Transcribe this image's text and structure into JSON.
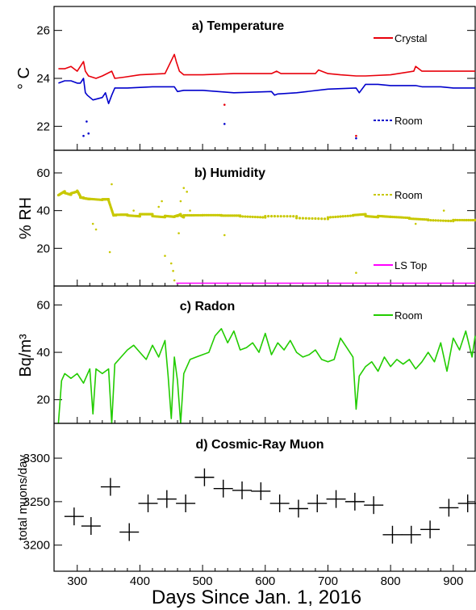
{
  "chart_data": [
    {
      "panel": "a",
      "type": "line",
      "title": "a) Temperature",
      "ylabel": "° C",
      "ylim": [
        21,
        27
      ],
      "yticks": [
        22,
        24,
        26
      ],
      "xlim": [
        263,
        935
      ],
      "series": [
        {
          "name": "Crystal",
          "color": "#e8000b",
          "x": [
            270,
            280,
            290,
            300,
            305,
            310,
            313,
            318,
            330,
            340,
            355,
            360,
            375,
            400,
            440,
            455,
            458,
            463,
            470,
            500,
            550,
            610,
            618,
            625,
            650,
            680,
            685,
            700,
            720,
            745,
            760,
            800,
            837,
            840,
            850,
            870,
            900,
            935
          ],
          "y": [
            24.4,
            24.4,
            24.5,
            24.3,
            24.5,
            24.7,
            24.3,
            24.1,
            24.0,
            24.1,
            24.3,
            24.0,
            24.05,
            24.15,
            24.2,
            25.0,
            24.7,
            24.3,
            24.15,
            24.15,
            24.2,
            24.2,
            24.3,
            24.2,
            24.2,
            24.2,
            24.35,
            24.2,
            24.15,
            24.1,
            24.1,
            24.15,
            24.3,
            24.5,
            24.3,
            24.3,
            24.3,
            24.3
          ]
        },
        {
          "name": "Room",
          "color": "#0000cc",
          "x": [
            270,
            280,
            290,
            300,
            305,
            310,
            313,
            316,
            325,
            340,
            345,
            350,
            355,
            360,
            380,
            420,
            455,
            460,
            470,
            500,
            550,
            610,
            615,
            620,
            650,
            700,
            745,
            750,
            760,
            780,
            800,
            840,
            850,
            880,
            900,
            935
          ],
          "y": [
            23.8,
            23.9,
            23.9,
            23.8,
            23.8,
            24.0,
            23.4,
            23.3,
            23.1,
            23.2,
            23.4,
            22.95,
            23.3,
            23.6,
            23.6,
            23.65,
            23.65,
            23.45,
            23.5,
            23.5,
            23.4,
            23.45,
            23.3,
            23.35,
            23.4,
            23.55,
            23.6,
            23.4,
            23.75,
            23.75,
            23.7,
            23.7,
            23.65,
            23.65,
            23.6,
            23.6
          ]
        }
      ],
      "outliers": [
        {
          "series": "Room",
          "x": 315,
          "y": 22.2
        },
        {
          "series": "Room",
          "x": 318,
          "y": 21.7
        },
        {
          "series": "Room",
          "x": 310,
          "y": 21.6
        },
        {
          "series": "Room",
          "x": 535,
          "y": 22.1
        },
        {
          "series": "Crystal",
          "x": 535,
          "y": 22.9
        },
        {
          "series": "Room",
          "x": 745,
          "y": 21.5
        },
        {
          "series": "Crystal",
          "x": 745,
          "y": 21.6
        }
      ]
    },
    {
      "panel": "b",
      "type": "scatter",
      "title": "b) Humidity",
      "ylabel": "% RH",
      "ylim": [
        0,
        72
      ],
      "yticks": [
        20,
        40,
        60
      ],
      "xlim": [
        263,
        935
      ],
      "series": [
        {
          "name": "Room",
          "color": "#c8c800",
          "x": [
            270,
            280,
            290,
            300,
            305,
            310,
            320,
            340,
            350,
            358,
            362,
            380,
            400,
            420,
            440,
            455,
            460,
            465,
            470,
            500,
            530,
            560,
            600,
            650,
            700,
            740,
            760,
            780,
            800,
            830,
            860,
            900,
            935
          ],
          "y": [
            48,
            50,
            49,
            50,
            47,
            47,
            46.5,
            46,
            46,
            38,
            38,
            38,
            37.5,
            37.5,
            37,
            36.5,
            37,
            38,
            37,
            37,
            37,
            37,
            36.5,
            36.5,
            36,
            37,
            37.5,
            37,
            36.5,
            36,
            35.5,
            35,
            35
          ]
        },
        {
          "name": "LS Top",
          "color": "#ff00ff",
          "x": [
            458,
            470,
            500,
            600,
            700,
            800,
            935
          ],
          "y": [
            1.5,
            1.5,
            1.5,
            1.5,
            1.5,
            1.5,
            1.5
          ]
        }
      ],
      "outliers": [
        {
          "series": "Room",
          "x": 325,
          "y": 33
        },
        {
          "series": "Room",
          "x": 330,
          "y": 30
        },
        {
          "series": "Room",
          "x": 355,
          "y": 54
        },
        {
          "series": "Room",
          "x": 352,
          "y": 18
        },
        {
          "series": "Room",
          "x": 390,
          "y": 40
        },
        {
          "series": "Room",
          "x": 430,
          "y": 42
        },
        {
          "series": "Room",
          "x": 435,
          "y": 45
        },
        {
          "series": "Room",
          "x": 440,
          "y": 16
        },
        {
          "series": "Room",
          "x": 450,
          "y": 12
        },
        {
          "series": "Room",
          "x": 453,
          "y": 8
        },
        {
          "series": "Room",
          "x": 455,
          "y": 3
        },
        {
          "series": "Room",
          "x": 462,
          "y": 28
        },
        {
          "series": "Room",
          "x": 465,
          "y": 45
        },
        {
          "series": "Room",
          "x": 470,
          "y": 52
        },
        {
          "series": "Room",
          "x": 475,
          "y": 50
        },
        {
          "series": "Room",
          "x": 480,
          "y": 40
        },
        {
          "series": "Room",
          "x": 535,
          "y": 27
        },
        {
          "series": "Room",
          "x": 745,
          "y": 7
        },
        {
          "series": "Room",
          "x": 840,
          "y": 33
        },
        {
          "series": "Room",
          "x": 885,
          "y": 40
        }
      ]
    },
    {
      "panel": "c",
      "type": "line",
      "title": "c) Radon",
      "ylabel": "Bq/m³",
      "ylim": [
        10,
        68
      ],
      "yticks": [
        20,
        40,
        60
      ],
      "xlim": [
        263,
        935
      ],
      "series": [
        {
          "name": "Room",
          "color": "#22cc00",
          "x": [
            270,
            275,
            280,
            290,
            300,
            310,
            320,
            325,
            330,
            340,
            350,
            355,
            360,
            370,
            380,
            390,
            400,
            410,
            420,
            430,
            440,
            445,
            450,
            455,
            460,
            465,
            470,
            480,
            490,
            500,
            510,
            520,
            530,
            540,
            550,
            560,
            570,
            580,
            590,
            600,
            610,
            620,
            630,
            640,
            650,
            660,
            670,
            680,
            690,
            700,
            710,
            720,
            730,
            740,
            745,
            750,
            760,
            770,
            780,
            790,
            800,
            810,
            820,
            830,
            840,
            850,
            860,
            870,
            880,
            890,
            900,
            910,
            920,
            930,
            935
          ],
          "y": [
            10,
            28,
            31,
            29,
            31,
            27,
            33,
            14,
            33,
            31,
            33,
            10,
            35,
            38,
            41,
            43,
            40,
            37,
            43,
            38,
            45,
            30,
            12,
            38,
            28,
            10,
            31,
            37,
            38,
            39,
            40,
            47,
            50,
            44,
            49,
            41,
            42,
            44,
            40,
            48,
            39,
            44,
            41,
            45,
            40,
            38,
            39,
            41,
            37,
            36,
            37,
            46,
            42,
            38,
            16,
            30,
            34,
            36,
            32,
            38,
            34,
            37,
            35,
            37,
            33,
            36,
            40,
            36,
            44,
            32,
            46,
            41,
            49,
            38,
            47
          ]
        }
      ]
    },
    {
      "panel": "d",
      "type": "scatter",
      "title": "d) Cosmic-Ray Muon",
      "ylabel": "total muons/day",
      "ylim": [
        3170,
        3340
      ],
      "yticks": [
        3200,
        3250,
        3300
      ],
      "xlim": [
        263,
        935
      ],
      "xlabel": "Days Since Jan. 1, 2016",
      "xticks": [
        300,
        400,
        500,
        600,
        700,
        800,
        900
      ],
      "series": [
        {
          "name": "",
          "color": "#000000",
          "x": [
            295,
            322,
            353,
            383,
            413,
            443,
            473,
            503,
            533,
            563,
            593,
            623,
            653,
            683,
            713,
            743,
            773,
            803,
            833,
            863,
            893,
            923
          ],
          "y": [
            3233,
            3222,
            3267,
            3215,
            3248,
            3253,
            3248,
            3278,
            3265,
            3263,
            3262,
            3248,
            3242,
            3248,
            3253,
            3250,
            3246,
            3212,
            3212,
            3218,
            3243,
            3248
          ]
        }
      ]
    }
  ]
}
